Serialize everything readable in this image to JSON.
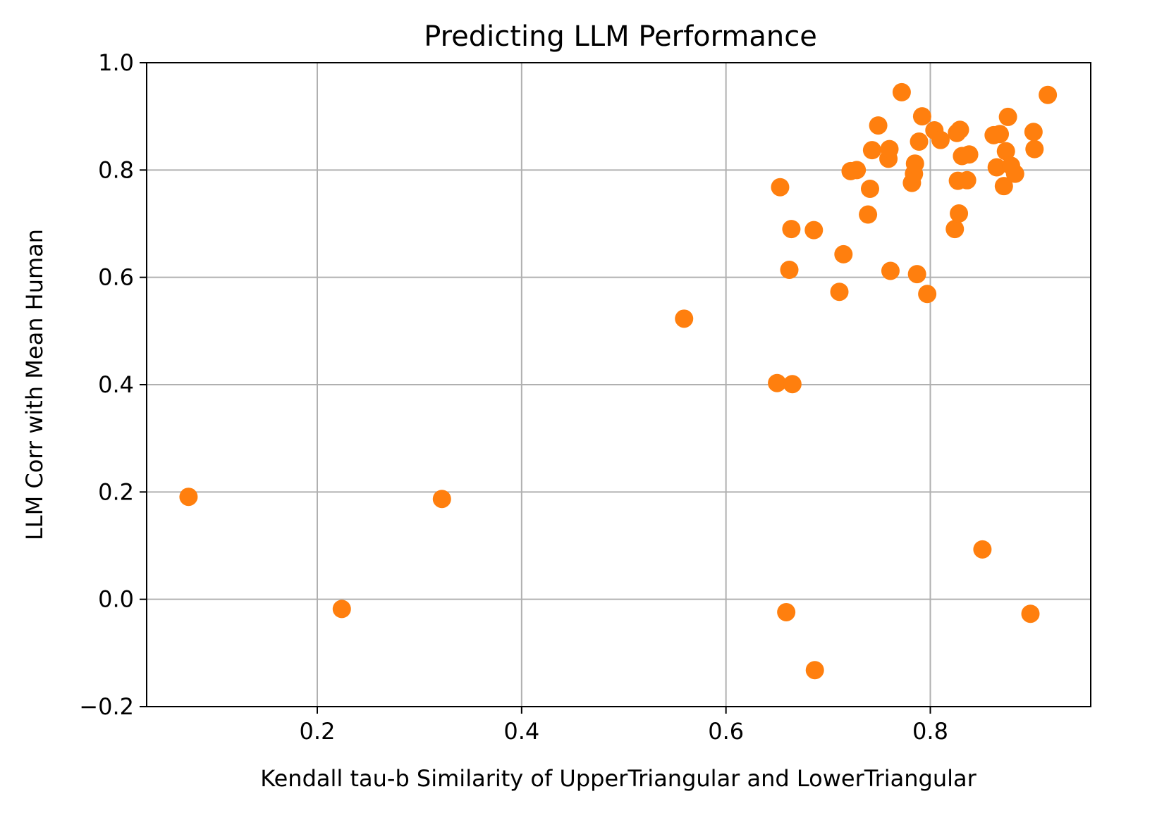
{
  "chart_data": {
    "type": "scatter",
    "title": "Predicting LLM Performance",
    "xlabel": "Kendall tau-b Similarity of UpperTriangular and LowerTriangular",
    "ylabel": "LLM Corr with Mean Human",
    "xlim": [
      0.033,
      0.957
    ],
    "ylim": [
      -0.2,
      1.0
    ],
    "xticks": [
      0.2,
      0.4,
      0.6,
      0.8
    ],
    "xtick_labels": [
      "0.2",
      "0.4",
      "0.6",
      "0.8"
    ],
    "yticks": [
      -0.2,
      0.0,
      0.2,
      0.4,
      0.6,
      0.8,
      1.0
    ],
    "ytick_labels": [
      "−0.2",
      "0.0",
      "0.2",
      "0.4",
      "0.6",
      "0.8",
      "1.0"
    ],
    "grid": true,
    "marker_color": "#ff7f0e",
    "points": [
      {
        "x": 0.074,
        "y": 0.191
      },
      {
        "x": 0.224,
        "y": -0.018
      },
      {
        "x": 0.322,
        "y": 0.187
      },
      {
        "x": 0.559,
        "y": 0.523
      },
      {
        "x": 0.65,
        "y": 0.403
      },
      {
        "x": 0.665,
        "y": 0.401
      },
      {
        "x": 0.653,
        "y": 0.768
      },
      {
        "x": 0.659,
        "y": -0.024
      },
      {
        "x": 0.662,
        "y": 0.614
      },
      {
        "x": 0.664,
        "y": 0.69
      },
      {
        "x": 0.686,
        "y": 0.688
      },
      {
        "x": 0.687,
        "y": -0.132
      },
      {
        "x": 0.711,
        "y": 0.573
      },
      {
        "x": 0.715,
        "y": 0.643
      },
      {
        "x": 0.722,
        "y": 0.798
      },
      {
        "x": 0.728,
        "y": 0.8
      },
      {
        "x": 0.739,
        "y": 0.717
      },
      {
        "x": 0.741,
        "y": 0.765
      },
      {
        "x": 0.743,
        "y": 0.837
      },
      {
        "x": 0.749,
        "y": 0.883
      },
      {
        "x": 0.759,
        "y": 0.821
      },
      {
        "x": 0.76,
        "y": 0.839
      },
      {
        "x": 0.761,
        "y": 0.612
      },
      {
        "x": 0.772,
        "y": 0.945
      },
      {
        "x": 0.782,
        "y": 0.776
      },
      {
        "x": 0.784,
        "y": 0.793
      },
      {
        "x": 0.785,
        "y": 0.812
      },
      {
        "x": 0.787,
        "y": 0.606
      },
      {
        "x": 0.789,
        "y": 0.853
      },
      {
        "x": 0.792,
        "y": 0.9
      },
      {
        "x": 0.797,
        "y": 0.569
      },
      {
        "x": 0.804,
        "y": 0.874
      },
      {
        "x": 0.81,
        "y": 0.856
      },
      {
        "x": 0.824,
        "y": 0.69
      },
      {
        "x": 0.826,
        "y": 0.869
      },
      {
        "x": 0.827,
        "y": 0.78
      },
      {
        "x": 0.828,
        "y": 0.719
      },
      {
        "x": 0.829,
        "y": 0.875
      },
      {
        "x": 0.831,
        "y": 0.826
      },
      {
        "x": 0.836,
        "y": 0.781
      },
      {
        "x": 0.838,
        "y": 0.829
      },
      {
        "x": 0.851,
        "y": 0.093
      },
      {
        "x": 0.862,
        "y": 0.865
      },
      {
        "x": 0.865,
        "y": 0.805
      },
      {
        "x": 0.868,
        "y": 0.867
      },
      {
        "x": 0.872,
        "y": 0.77
      },
      {
        "x": 0.874,
        "y": 0.835
      },
      {
        "x": 0.876,
        "y": 0.899
      },
      {
        "x": 0.879,
        "y": 0.808
      },
      {
        "x": 0.883,
        "y": 0.793
      },
      {
        "x": 0.898,
        "y": -0.027
      },
      {
        "x": 0.901,
        "y": 0.871
      },
      {
        "x": 0.902,
        "y": 0.839
      },
      {
        "x": 0.915,
        "y": 0.94
      }
    ]
  }
}
